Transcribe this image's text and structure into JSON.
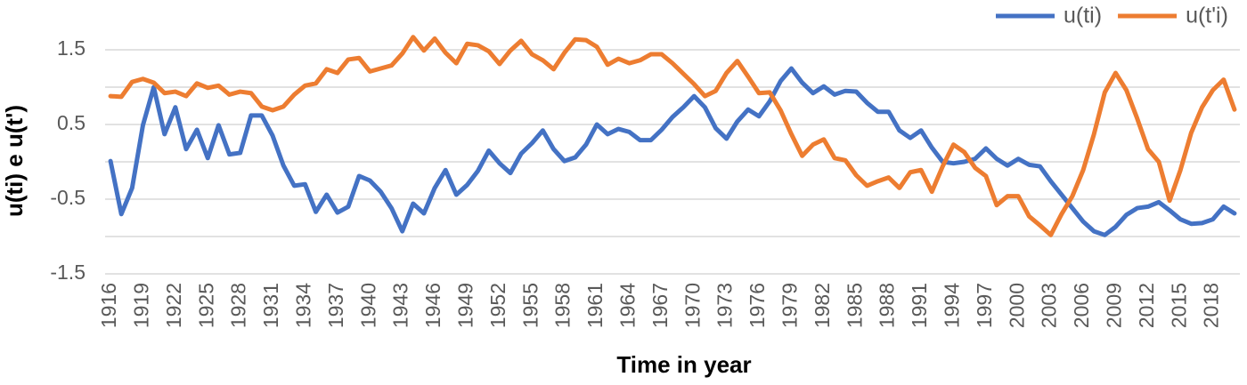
{
  "chart_data": {
    "type": "line",
    "x_label": "Time in year",
    "y_label": "u(ti) e u(t')",
    "x": [
      1916,
      1917,
      1918,
      1919,
      1920,
      1921,
      1922,
      1923,
      1924,
      1925,
      1926,
      1927,
      1928,
      1929,
      1930,
      1931,
      1932,
      1933,
      1934,
      1935,
      1936,
      1937,
      1938,
      1939,
      1940,
      1941,
      1942,
      1943,
      1944,
      1945,
      1946,
      1947,
      1948,
      1949,
      1950,
      1951,
      1952,
      1953,
      1954,
      1955,
      1956,
      1957,
      1958,
      1959,
      1960,
      1961,
      1962,
      1963,
      1964,
      1965,
      1966,
      1967,
      1968,
      1969,
      1970,
      1971,
      1972,
      1973,
      1974,
      1975,
      1976,
      1977,
      1978,
      1979,
      1980,
      1981,
      1982,
      1983,
      1984,
      1985,
      1986,
      1987,
      1988,
      1989,
      1990,
      1991,
      1992,
      1993,
      1994,
      1995,
      1996,
      1997,
      1998,
      1999,
      2000,
      2001,
      2002,
      2003,
      2004,
      2005,
      2006,
      2007,
      2008,
      2009,
      2010,
      2011,
      2012,
      2013,
      2014,
      2015,
      2016,
      2017,
      2018,
      2019,
      2020
    ],
    "series": [
      {
        "name": "u(ti)",
        "color": "#4472c4",
        "values": [
          0.01,
          -0.7,
          -0.35,
          0.49,
          1.0,
          0.37,
          0.73,
          0.17,
          0.43,
          0.05,
          0.49,
          0.1,
          0.12,
          0.62,
          0.62,
          0.35,
          -0.05,
          -0.32,
          -0.3,
          -0.67,
          -0.44,
          -0.68,
          -0.6,
          -0.19,
          -0.25,
          -0.4,
          -0.62,
          -0.93,
          -0.56,
          -0.69,
          -0.35,
          -0.11,
          -0.44,
          -0.31,
          -0.12,
          0.15,
          -0.02,
          -0.15,
          0.11,
          0.25,
          0.42,
          0.17,
          0.01,
          0.06,
          0.23,
          0.5,
          0.37,
          0.44,
          0.4,
          0.29,
          0.29,
          0.43,
          0.6,
          0.73,
          0.88,
          0.73,
          0.45,
          0.31,
          0.54,
          0.7,
          0.61,
          0.81,
          1.08,
          1.25,
          1.06,
          0.92,
          1.01,
          0.9,
          0.95,
          0.94,
          0.79,
          0.67,
          0.67,
          0.42,
          0.32,
          0.42,
          0.19,
          0.0,
          -0.02,
          0.0,
          0.04,
          0.18,
          0.04,
          -0.05,
          0.04,
          -0.04,
          -0.06,
          -0.26,
          -0.44,
          -0.62,
          -0.8,
          -0.93,
          -0.98,
          -0.87,
          -0.71,
          -0.62,
          -0.6,
          -0.54,
          -0.65,
          -0.77,
          -0.83,
          -0.82,
          -0.77,
          -0.6,
          -0.69
        ]
      },
      {
        "name": "u(t'i)",
        "color": "#ed7d31",
        "values": [
          0.88,
          0.87,
          1.07,
          1.11,
          1.06,
          0.92,
          0.94,
          0.88,
          1.05,
          0.99,
          1.02,
          0.9,
          0.94,
          0.92,
          0.74,
          0.69,
          0.74,
          0.9,
          1.02,
          1.05,
          1.24,
          1.19,
          1.37,
          1.39,
          1.21,
          1.25,
          1.29,
          1.45,
          1.67,
          1.49,
          1.65,
          1.46,
          1.32,
          1.58,
          1.56,
          1.48,
          1.31,
          1.49,
          1.62,
          1.44,
          1.36,
          1.24,
          1.46,
          1.64,
          1.63,
          1.54,
          1.3,
          1.38,
          1.32,
          1.36,
          1.44,
          1.44,
          1.32,
          1.18,
          1.04,
          0.88,
          0.95,
          1.19,
          1.35,
          1.14,
          0.92,
          0.93,
          0.69,
          0.37,
          0.08,
          0.23,
          0.3,
          0.05,
          0.02,
          -0.18,
          -0.32,
          -0.26,
          -0.21,
          -0.35,
          -0.14,
          -0.11,
          -0.4,
          -0.06,
          0.23,
          0.13,
          -0.08,
          -0.19,
          -0.58,
          -0.46,
          -0.46,
          -0.73,
          -0.85,
          -0.98,
          -0.7,
          -0.46,
          -0.11,
          0.37,
          0.93,
          1.19,
          0.96,
          0.58,
          0.17,
          0.0,
          -0.52,
          -0.11,
          0.39,
          0.73,
          0.96,
          1.1,
          0.7
        ]
      }
    ],
    "xlim": [
      1915.5,
      2020.5
    ],
    "xticks": [
      1916,
      1919,
      1922,
      1925,
      1928,
      1931,
      1934,
      1937,
      1940,
      1943,
      1946,
      1949,
      1952,
      1955,
      1958,
      1961,
      1964,
      1967,
      1970,
      1973,
      1976,
      1979,
      1982,
      1985,
      1988,
      1991,
      1994,
      1997,
      2000,
      2003,
      2006,
      2009,
      2012,
      2015,
      2018
    ],
    "ylim": [
      -1.5,
      2
    ],
    "yticks": [
      -1.5,
      -0.5,
      0.5,
      1.5
    ],
    "ygrid": [
      -1.5,
      -1,
      -0.5,
      0,
      0.5,
      1,
      1.5
    ],
    "legend": "top-right"
  }
}
